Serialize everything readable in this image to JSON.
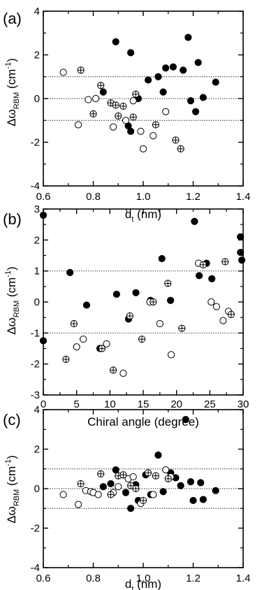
{
  "chart_data": [
    {
      "panel_label": "(a)",
      "type": "scatter",
      "xlabel": "d",
      "xlabel_sub": "t",
      "xlabel_unit": "(nm)",
      "ylabel_symbol": "Δω",
      "ylabel_sub": "RBM",
      "ylabel_unit": "(cm",
      "ylabel_sup": "-1",
      "ylabel_close": ")",
      "xlim": [
        0.6,
        1.4
      ],
      "ylim": [
        -4,
        4
      ],
      "xticks": [
        0.6,
        0.8,
        1.0,
        1.2,
        1.4
      ],
      "xtick_labels": [
        "0.6",
        "0.8",
        "1.0",
        "1.2",
        "1.4"
      ],
      "yticks": [
        -4,
        -2,
        0,
        2,
        4
      ],
      "ytick_labels": [
        "-4",
        "-2",
        "0",
        "2",
        "4"
      ],
      "reference_lines": [
        1,
        0,
        -1
      ],
      "series": [
        {
          "marker": "filled",
          "points": [
            [
              0.84,
              0.3
            ],
            [
              0.89,
              2.6
            ],
            [
              0.95,
              2.1
            ],
            [
              0.94,
              -1.25
            ],
            [
              0.95,
              -1.5
            ],
            [
              0.98,
              0.0
            ],
            [
              1.02,
              0.85
            ],
            [
              1.06,
              1.0
            ],
            [
              1.08,
              0.3
            ],
            [
              1.09,
              1.4
            ],
            [
              1.12,
              1.45
            ],
            [
              1.16,
              1.3
            ],
            [
              1.18,
              2.8
            ],
            [
              1.19,
              -0.1
            ],
            [
              1.21,
              -0.6
            ],
            [
              1.22,
              1.65
            ],
            [
              1.24,
              0.05
            ],
            [
              1.29,
              0.75
            ]
          ]
        },
        {
          "marker": "open",
          "points": [
            [
              0.68,
              1.2
            ],
            [
              0.74,
              -1.2
            ],
            [
              0.78,
              -0.05
            ],
            [
              0.81,
              0.0
            ],
            [
              0.88,
              -1.3
            ],
            [
              0.93,
              -1.0
            ],
            [
              0.96,
              -0.1
            ],
            [
              0.99,
              -1.5
            ],
            [
              1.0,
              -2.3
            ],
            [
              1.04,
              -1.7
            ],
            [
              1.09,
              -0.6
            ]
          ]
        },
        {
          "marker": "crossed",
          "points": [
            [
              0.75,
              1.3
            ],
            [
              0.8,
              -0.7
            ],
            [
              0.83,
              0.6
            ],
            [
              0.87,
              -0.2
            ],
            [
              0.89,
              -0.3
            ],
            [
              0.9,
              -0.8
            ],
            [
              0.92,
              -0.35
            ],
            [
              0.96,
              -0.85
            ],
            [
              0.97,
              0.2
            ],
            [
              1.05,
              -1.2
            ],
            [
              1.13,
              -1.9
            ],
            [
              1.15,
              -2.3
            ]
          ]
        }
      ]
    },
    {
      "panel_label": "(b)",
      "type": "scatter",
      "xlabel": "Chiral angle (degree)",
      "ylabel_symbol": "Δω",
      "ylabel_sub": "RBM",
      "ylabel_unit": "(cm",
      "ylabel_sup": "-1",
      "ylabel_close": ")",
      "xlim": [
        0,
        30
      ],
      "ylim": [
        -3,
        3
      ],
      "xticks": [
        0,
        5,
        10,
        15,
        20,
        25,
        30
      ],
      "xtick_labels": [
        "0",
        "5",
        "10",
        "15",
        "20",
        "25",
        "30"
      ],
      "yticks": [
        -3,
        -2,
        -1,
        0,
        1,
        2,
        3
      ],
      "ytick_labels": [
        "-3",
        "-2",
        "-1",
        "0",
        "1",
        "2",
        "3"
      ],
      "reference_lines": [
        1,
        -1
      ],
      "series": [
        {
          "marker": "filled",
          "points": [
            [
              0,
              2.8
            ],
            [
              0,
              -1.25
            ],
            [
              4.0,
              0.95
            ],
            [
              6.5,
              -0.1
            ],
            [
              8.5,
              -1.5
            ],
            [
              11,
              0.25
            ],
            [
              12.8,
              -0.55
            ],
            [
              13.9,
              0.3
            ],
            [
              16.1,
              0.05
            ],
            [
              17.8,
              1.4
            ],
            [
              19.1,
              0.05
            ],
            [
              22.7,
              2.6
            ],
            [
              23.4,
              0.85
            ],
            [
              24.5,
              1.25
            ],
            [
              25.3,
              0.75
            ],
            [
              29.6,
              2.1
            ],
            [
              29.6,
              1.6
            ],
            [
              29.8,
              1.35
            ]
          ]
        },
        {
          "marker": "open",
          "points": [
            [
              5.0,
              -1.45
            ],
            [
              6.0,
              -1.2
            ],
            [
              9.5,
              -1.35
            ],
            [
              12.0,
              -2.3
            ],
            [
              16,
              0.0
            ],
            [
              17.5,
              -0.7
            ],
            [
              19.2,
              -1.7
            ],
            [
              23.3,
              1.25
            ],
            [
              25.2,
              0.0
            ],
            [
              26,
              -0.15
            ],
            [
              27,
              -0.6
            ],
            [
              27.8,
              -0.3
            ]
          ]
        },
        {
          "marker": "crossed",
          "points": [
            [
              3.4,
              -1.85
            ],
            [
              4.6,
              -0.7
            ],
            [
              8.8,
              -1.5
            ],
            [
              10.5,
              -2.2
            ],
            [
              13,
              -0.45
            ],
            [
              14.8,
              -1.2
            ],
            [
              16.5,
              0.0
            ],
            [
              18.7,
              0.6
            ],
            [
              20.8,
              -0.85
            ],
            [
              24.0,
              1.2
            ],
            [
              27.3,
              1.3
            ],
            [
              28.2,
              -0.4
            ]
          ]
        }
      ]
    },
    {
      "panel_label": "(c)",
      "type": "scatter",
      "xlabel": "d",
      "xlabel_sub": "t",
      "xlabel_unit": "(nm)",
      "ylabel_symbol": "Δω",
      "ylabel_sub": "RBM",
      "ylabel_unit": "(cm",
      "ylabel_sup": "-1",
      "ylabel_close": ")",
      "xlim": [
        0.6,
        1.4
      ],
      "ylim": [
        -4,
        4
      ],
      "xticks": [
        0.6,
        0.8,
        1.0,
        1.2,
        1.4
      ],
      "xtick_labels": [
        "0.6",
        "0.8",
        "1.0",
        "1.2",
        "1.4"
      ],
      "yticks": [
        -4,
        -2,
        0,
        2,
        4
      ],
      "ytick_labels": [
        "-4",
        "-2",
        "0",
        "2",
        "4"
      ],
      "reference_lines": [
        1,
        0,
        -1
      ],
      "series": [
        {
          "marker": "filled",
          "points": [
            [
              0.84,
              0.1
            ],
            [
              0.87,
              0.25
            ],
            [
              0.89,
              0.95
            ],
            [
              0.93,
              -0.2
            ],
            [
              0.95,
              -1.0
            ],
            [
              0.97,
              0.2
            ],
            [
              0.98,
              -0.6
            ],
            [
              1.01,
              0.7
            ],
            [
              1.03,
              -0.3
            ],
            [
              1.06,
              1.7
            ],
            [
              1.08,
              -0.15
            ],
            [
              1.11,
              0.8
            ],
            [
              1.13,
              0.55
            ],
            [
              1.15,
              0.15
            ],
            [
              1.17,
              3.5
            ],
            [
              1.19,
              0.35
            ],
            [
              1.2,
              -0.6
            ],
            [
              1.23,
              0.3
            ],
            [
              1.24,
              -0.55
            ],
            [
              1.29,
              -0.1
            ]
          ]
        },
        {
          "marker": "open",
          "points": [
            [
              0.68,
              -0.3
            ],
            [
              0.74,
              -0.8
            ],
            [
              0.77,
              -0.1
            ],
            [
              0.79,
              -0.15
            ],
            [
              0.8,
              -0.2
            ],
            [
              0.82,
              -0.3
            ],
            [
              0.88,
              -0.2
            ],
            [
              0.9,
              0.1
            ],
            [
              0.94,
              0.5
            ],
            [
              0.96,
              0.6
            ],
            [
              0.99,
              -0.75
            ],
            [
              1.04,
              -0.3
            ],
            [
              1.09,
              0.95
            ],
            [
              1.11,
              0.6
            ]
          ]
        },
        {
          "marker": "crossed",
          "points": [
            [
              0.75,
              0.25
            ],
            [
              0.83,
              0.75
            ],
            [
              0.87,
              -0.3
            ],
            [
              0.9,
              0.65
            ],
            [
              0.92,
              0.7
            ],
            [
              0.95,
              0.15
            ],
            [
              0.97,
              0.0
            ],
            [
              1.0,
              -0.6
            ],
            [
              1.02,
              0.8
            ],
            [
              1.05,
              0.65
            ],
            [
              1.1,
              0.5
            ]
          ]
        }
      ]
    }
  ]
}
